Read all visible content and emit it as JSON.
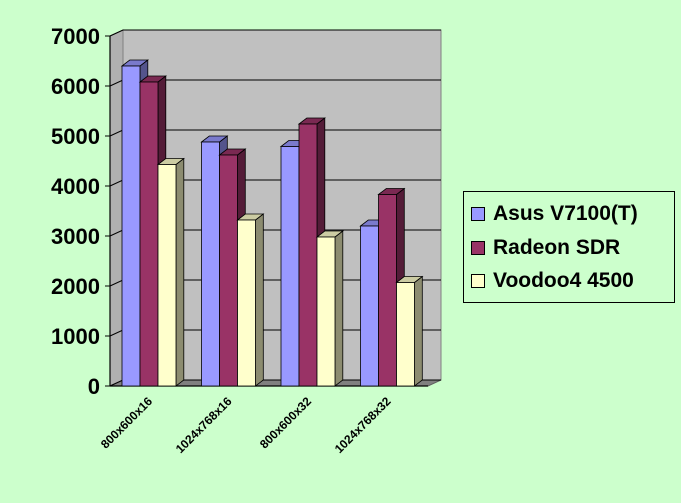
{
  "chart_data": {
    "type": "bar",
    "categories": [
      "800x600x16",
      "1024x768x16",
      "800x600x32",
      "1024x768x32"
    ],
    "series": [
      {
        "name": "Asus V7100(T)",
        "color": "#9999ff",
        "values": [
          6400,
          4880,
          4790,
          3200
        ]
      },
      {
        "name": "Radeon SDR",
        "color": "#993366",
        "values": [
          6080,
          4620,
          5240,
          3830
        ]
      },
      {
        "name": "Voodoo4 4500",
        "color": "#ffffcc",
        "values": [
          4430,
          3320,
          2980,
          2070
        ]
      }
    ],
    "ylim": [
      0,
      7000
    ],
    "yticks": [
      0,
      1000,
      2000,
      3000,
      4000,
      5000,
      6000,
      7000
    ],
    "grid": true,
    "three_d": true,
    "plot_area_color": "#c0c0c0",
    "legend_position": "right"
  }
}
